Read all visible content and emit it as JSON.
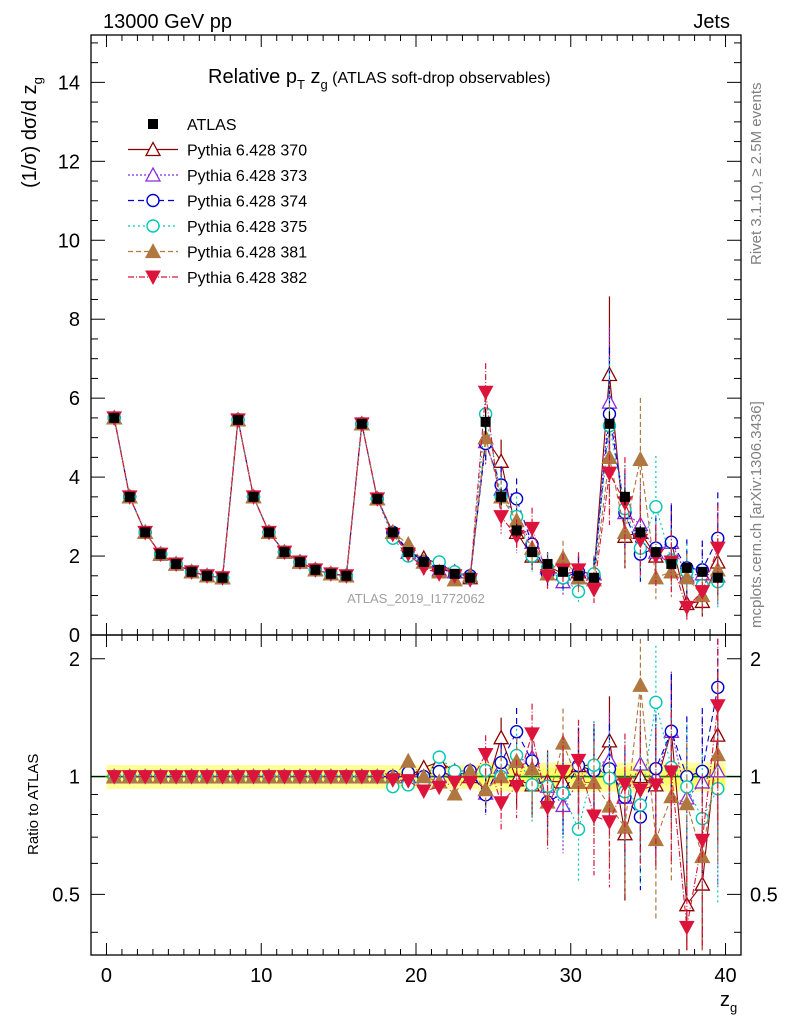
{
  "header": {
    "left": "13000 GeV pp",
    "right": "Jets"
  },
  "side": {
    "rivet": "Rivet 3.1.10, ≥ 2.5M events",
    "mcplots": "mcplots.cern.ch [arXiv:1306.3436]"
  },
  "watermark": "ATLAS_2019_I1772062",
  "colors": {
    "data": "#000000",
    "p370": "#8b0000",
    "p373": "#8a2be2",
    "p374": "#0000cd",
    "p375": "#00c8b4",
    "p381": "#b07840",
    "p382": "#dc143c",
    "band_inner": "#ffff66",
    "band_outer": "#ffff99",
    "ratio_line": "#008000"
  },
  "chart_data": [
    {
      "type": "scatter",
      "panel": "main",
      "title": "Relative p_T z_g (ATLAS soft-drop observables)",
      "title_parts": {
        "a": "Relative p",
        "sub1": "T",
        "b": " z",
        "sub2": "g",
        "c": " (ATLAS soft-drop observables)"
      },
      "ylabel": "(1/σ) dσ/d z",
      "ylabel_sub": "g",
      "xlabel": "z",
      "xlabel_sub": "g",
      "xlim": [
        -1,
        41
      ],
      "ylim": [
        0,
        15.2
      ],
      "yticks": [
        0,
        2,
        4,
        6,
        8,
        10,
        12,
        14
      ],
      "legend_position": "top-left",
      "x": [
        0.5,
        1.5,
        2.5,
        3.5,
        4.5,
        5.5,
        6.5,
        7.5,
        8.5,
        9.5,
        10.5,
        11.5,
        12.5,
        13.5,
        14.5,
        15.5,
        16.5,
        17.5,
        18.5,
        19.5,
        20.5,
        21.5,
        22.5,
        23.5,
        24.5,
        25.5,
        26.5,
        27.5,
        28.5,
        29.5,
        30.5,
        31.5,
        32.5,
        33.5,
        34.5,
        35.5,
        36.5,
        37.5,
        38.5,
        39.5
      ],
      "series": [
        {
          "name": "ATLAS",
          "key": "data",
          "marker": "square",
          "values": [
            5.5,
            3.5,
            2.6,
            2.05,
            1.8,
            1.6,
            1.5,
            1.45,
            5.45,
            3.5,
            2.6,
            2.1,
            1.85,
            1.65,
            1.55,
            1.5,
            5.35,
            3.45,
            2.6,
            2.1,
            1.85,
            1.65,
            1.55,
            1.45,
            5.4,
            3.5,
            2.65,
            2.1,
            1.8,
            1.6,
            1.5,
            1.45,
            5.35,
            3.5,
            2.6,
            2.1,
            1.8,
            1.7,
            1.6,
            1.45
          ]
        },
        {
          "name": "Pythia 6.428 370",
          "key": "p370",
          "marker": "triangle-open",
          "dash": "",
          "values": [
            5.5,
            3.5,
            2.6,
            2.05,
            1.8,
            1.6,
            1.5,
            1.45,
            5.45,
            3.5,
            2.6,
            2.1,
            1.85,
            1.65,
            1.55,
            1.5,
            5.35,
            3.45,
            2.6,
            2.1,
            1.95,
            1.8,
            1.6,
            1.45,
            5.0,
            4.4,
            2.6,
            2.0,
            1.75,
            1.55,
            1.6,
            1.55,
            6.6,
            2.5,
            2.6,
            2.0,
            2.35,
            0.8,
            0.85,
            1.85
          ]
        },
        {
          "name": "Pythia 6.428 373",
          "key": "p373",
          "marker": "triangle-open",
          "dash": "2,2",
          "values": [
            5.5,
            3.5,
            2.6,
            2.05,
            1.8,
            1.6,
            1.5,
            1.45,
            5.45,
            3.5,
            2.6,
            2.1,
            1.85,
            1.65,
            1.55,
            1.5,
            5.35,
            3.45,
            2.6,
            2.1,
            1.85,
            1.65,
            1.6,
            1.5,
            4.9,
            3.7,
            2.9,
            2.35,
            1.7,
            1.35,
            1.45,
            1.55,
            5.9,
            3.1,
            2.8,
            2.1,
            2.35,
            1.5,
            1.55,
            1.5
          ]
        },
        {
          "name": "Pythia 6.428 374",
          "key": "p374",
          "marker": "circle-open",
          "dash": "6,4",
          "values": [
            5.5,
            3.5,
            2.6,
            2.05,
            1.8,
            1.6,
            1.5,
            1.45,
            5.45,
            3.5,
            2.6,
            2.1,
            1.85,
            1.65,
            1.55,
            1.5,
            5.35,
            3.45,
            2.6,
            2.15,
            1.85,
            1.7,
            1.55,
            1.5,
            4.85,
            3.8,
            3.45,
            2.3,
            1.55,
            1.45,
            1.6,
            1.5,
            5.6,
            3.1,
            2.05,
            2.2,
            2.35,
            1.7,
            1.65,
            2.45
          ]
        },
        {
          "name": "Pythia 6.428 375",
          "key": "p375",
          "marker": "circle-open",
          "dash": "2,3",
          "values": [
            5.5,
            3.5,
            2.6,
            2.05,
            1.8,
            1.6,
            1.5,
            1.45,
            5.45,
            3.5,
            2.6,
            2.1,
            1.85,
            1.65,
            1.55,
            1.5,
            5.35,
            3.45,
            2.45,
            2.0,
            1.8,
            1.85,
            1.6,
            1.45,
            5.6,
            3.5,
            3.0,
            2.0,
            1.7,
            1.45,
            1.1,
            1.55,
            5.3,
            3.2,
            2.2,
            3.25,
            1.9,
            1.6,
            1.25,
            1.35
          ]
        },
        {
          "name": "Pythia 6.428 381",
          "key": "p381",
          "marker": "triangle-filled",
          "dash": "5,3",
          "values": [
            5.5,
            3.5,
            2.6,
            2.05,
            1.8,
            1.6,
            1.5,
            1.45,
            5.45,
            3.5,
            2.6,
            2.1,
            1.85,
            1.65,
            1.55,
            1.5,
            5.35,
            3.45,
            2.6,
            2.3,
            1.85,
            1.6,
            1.4,
            1.5,
            5.0,
            3.5,
            2.9,
            2.2,
            1.55,
            1.95,
            1.45,
            1.4,
            4.5,
            2.6,
            4.45,
            1.45,
            1.6,
            1.45,
            1.0,
            1.65
          ]
        },
        {
          "name": "Pythia 6.428 382",
          "key": "p382",
          "marker": "triangle-down-filled",
          "dash": "6,2,1,2",
          "values": [
            5.5,
            3.5,
            2.6,
            2.05,
            1.8,
            1.6,
            1.5,
            1.45,
            5.45,
            3.5,
            2.6,
            2.1,
            1.85,
            1.65,
            1.55,
            1.5,
            5.35,
            3.45,
            2.55,
            2.05,
            1.7,
            1.55,
            1.5,
            1.4,
            6.15,
            3.0,
            2.5,
            2.7,
            1.5,
            1.65,
            1.65,
            1.15,
            4.1,
            3.35,
            2.4,
            2.0,
            1.85,
            0.7,
            1.1,
            2.2
          ]
        }
      ]
    },
    {
      "type": "scatter",
      "panel": "ratio",
      "ylabel": "Ratio to ATLAS",
      "xlabel": "z",
      "xlabel_sub": "g",
      "xlim": [
        -1,
        41
      ],
      "xticks": [
        0,
        10,
        20,
        30,
        40
      ],
      "ylim": [
        0.35,
        2.3
      ],
      "yticks": [
        0.5,
        1,
        2
      ],
      "reference": 1
    }
  ]
}
